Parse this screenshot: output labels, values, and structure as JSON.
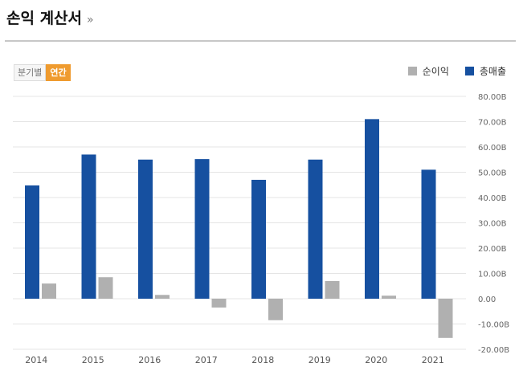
{
  "header": {
    "title": "손익 계산서",
    "more_icon": "»"
  },
  "toggle": {
    "quarterly_label": "분기별",
    "annual_label": "연간",
    "active": "annual"
  },
  "colors": {
    "net_income": "#b0b0b0",
    "revenue": "#1650a0",
    "toggle_active": "#ef9b2f"
  },
  "chart_data": {
    "type": "bar",
    "categories": [
      "2014",
      "2015",
      "2016",
      "2017",
      "2018",
      "2019",
      "2020",
      "2021"
    ],
    "series": [
      {
        "name": "순이익",
        "values": [
          6.0,
          8.5,
          1.5,
          -3.5,
          -8.5,
          7.0,
          1.2,
          -15.5
        ],
        "color": "#b0b0b0"
      },
      {
        "name": "총매출",
        "values": [
          44.8,
          57.0,
          55.0,
          55.2,
          47.0,
          55.0,
          71.0,
          51.0
        ],
        "color": "#1650a0"
      }
    ],
    "y_ticks": [
      "80.00B",
      "70.00B",
      "60.00B",
      "50.00B",
      "40.00B",
      "30.00B",
      "20.00B",
      "10.00B",
      "0.00",
      "-10.00B",
      "-20.00B"
    ],
    "ylim": [
      -20,
      80
    ],
    "y_axis_side": "right",
    "grid": true,
    "legend_position": "top-right"
  }
}
